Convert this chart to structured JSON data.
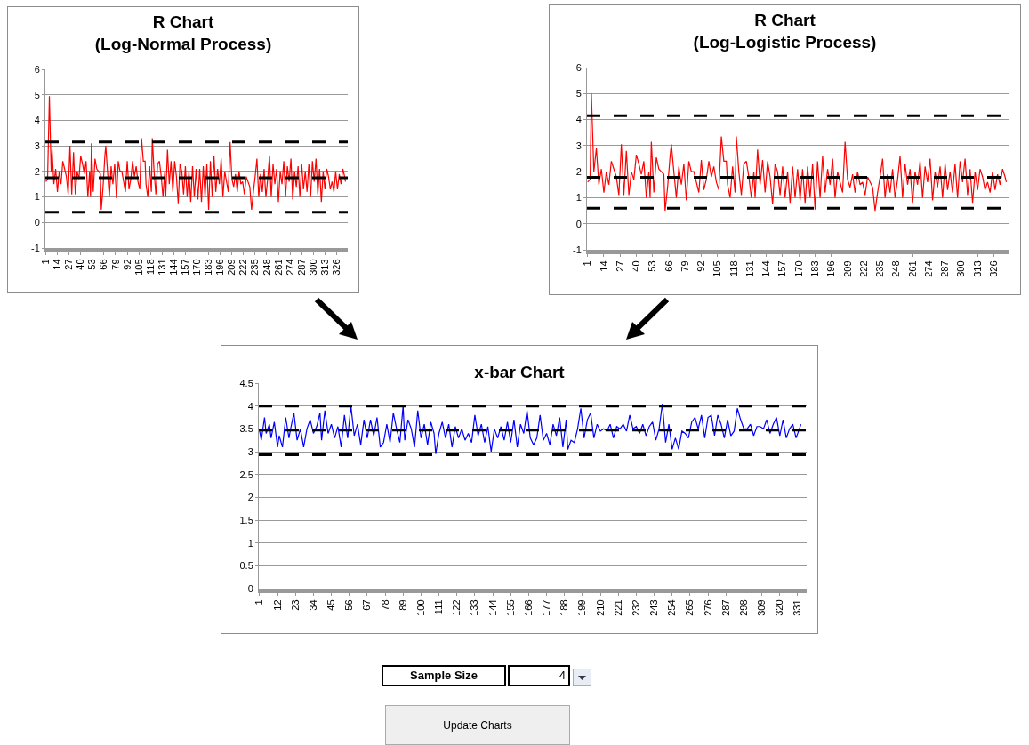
{
  "chart_data": [
    {
      "type": "line",
      "title": "R Chart\n(Log-Normal Process)",
      "marker": "none",
      "grid": "y",
      "xlim": [
        0.5,
        338.5
      ],
      "xticks": [
        1,
        14,
        27,
        40,
        53,
        66,
        79,
        92,
        105,
        118,
        131,
        144,
        157,
        170,
        183,
        196,
        209,
        222,
        235,
        248,
        261,
        274,
        287,
        300,
        313,
        326
      ],
      "ylim": [
        -1,
        6
      ],
      "yticks": [
        -1,
        0,
        1,
        2,
        3,
        4,
        5,
        6
      ],
      "ref_lines": [
        {
          "axis": "y",
          "value": 3.15,
          "color": "#000000",
          "line_style": "dashed"
        },
        {
          "axis": "y",
          "value": 1.75,
          "color": "#000000",
          "line_style": "dashed"
        },
        {
          "axis": "y",
          "value": 0.4,
          "color": "#000000",
          "line_style": "dashed"
        }
      ],
      "series": [
        {
          "color": "#ff0000",
          "x": [
            1,
            3,
            5,
            7,
            8,
            10,
            12,
            14,
            16,
            18,
            20,
            22,
            24,
            26,
            28,
            30,
            32,
            34,
            36,
            38,
            40,
            42,
            44,
            46,
            48,
            50,
            51,
            52,
            54,
            56,
            58,
            60,
            62,
            63,
            65,
            67,
            68,
            70,
            72,
            74,
            76,
            78,
            80,
            82,
            84,
            86,
            88,
            90,
            92,
            94,
            96,
            98,
            100,
            102,
            104,
            106,
            108,
            110,
            112,
            113,
            115,
            117,
            119,
            120,
            122,
            124,
            126,
            128,
            130,
            132,
            134,
            135,
            137,
            139,
            141,
            143,
            145,
            147,
            149,
            151,
            153,
            155,
            157,
            159,
            161,
            163,
            165,
            167,
            169,
            171,
            173,
            175,
            177,
            179,
            181,
            183,
            185,
            187,
            189,
            191,
            193,
            195,
            197,
            199,
            201,
            203,
            205,
            207,
            209,
            211,
            213,
            215,
            217,
            219,
            221,
            223,
            225,
            227,
            229,
            231,
            233,
            235,
            237,
            239,
            241,
            243,
            245,
            247,
            249,
            251,
            253,
            255,
            257,
            259,
            261,
            263,
            265,
            267,
            269,
            271,
            273,
            275,
            277,
            279,
            281,
            283,
            285,
            287,
            289,
            291,
            293,
            295,
            297,
            299,
            301,
            303,
            305,
            307,
            309,
            311,
            313,
            315,
            317,
            319,
            321,
            323,
            325,
            327,
            329,
            331,
            333,
            335,
            336
          ],
          "values": [
            1.6,
            1.7,
            4.95,
            2.0,
            2.85,
            1.5,
            2.1,
            1.2,
            2.0,
            1.5,
            2.4,
            2.1,
            1.8,
            1.1,
            3.0,
            1.1,
            2.75,
            1.1,
            2.0,
            1.7,
            2.6,
            2.3,
            1.9,
            2.4,
            1.0,
            2.0,
            1.0,
            3.1,
            1.2,
            2.5,
            2.1,
            2.0,
            1.9,
            0.5,
            1.4,
            2.6,
            3.0,
            2.0,
            1.0,
            2.2,
            1.5,
            2.3,
            0.95,
            2.4,
            2.0,
            2.0,
            1.6,
            1.2,
            2.4,
            1.3,
            1.7,
            2.4,
            1.8,
            2.2,
            1.6,
            1.3,
            3.3,
            2.4,
            2.4,
            1.5,
            1.0,
            2.2,
            1.2,
            3.3,
            2.0,
            1.1,
            2.3,
            2.4,
            1.8,
            1.0,
            2.0,
            1.0,
            2.85,
            1.5,
            2.4,
            1.2,
            2.4,
            1.8,
            0.75,
            2.3,
            2.0,
            1.1,
            2.2,
            1.0,
            2.0,
            0.8,
            2.2,
            1.0,
            2.1,
            0.9,
            2.1,
            0.8,
            2.2,
            1.0,
            2.3,
            0.5,
            2.4,
            1.0,
            2.6,
            1.2,
            2.1,
            1.5,
            2.5,
            1.0,
            2.0,
            1.6,
            1.2,
            3.15,
            1.7,
            1.4,
            1.9,
            1.2,
            2.0,
            1.5,
            1.6,
            1.1,
            1.8,
            1.6,
            1.4,
            0.5,
            1.2,
            1.8,
            2.5,
            1.0,
            1.9,
            1.2,
            2.1,
            1.0,
            1.7,
            2.6,
            1.0,
            2.3,
            1.5,
            2.1,
            0.8,
            2.0,
            1.5,
            2.4,
            1.0,
            2.2,
            1.6,
            2.5,
            0.9,
            2.0,
            1.4,
            2.2,
            1.0,
            2.3,
            1.3,
            2.0,
            1.2,
            2.3,
            1.0,
            2.4,
            1.6,
            2.5,
            1.1,
            2.1,
            0.8,
            2.0,
            1.3,
            2.1,
            1.8,
            1.3,
            1.6,
            1.2,
            2.0,
            1.3,
            1.9,
            1.5,
            2.1,
            1.8,
            1.6
          ]
        }
      ]
    },
    {
      "type": "line",
      "title": "R Chart\n(Log-Logistic Process)",
      "marker": "none",
      "grid": "y",
      "xlim": [
        0.5,
        338.5
      ],
      "xticks": [
        1,
        14,
        27,
        40,
        53,
        66,
        79,
        92,
        105,
        118,
        131,
        144,
        157,
        170,
        183,
        196,
        209,
        222,
        235,
        248,
        261,
        274,
        287,
        300,
        313,
        326
      ],
      "ylim": [
        -1,
        6
      ],
      "yticks": [
        -1,
        0,
        1,
        2,
        3,
        4,
        5,
        6
      ],
      "ref_lines": [
        {
          "axis": "y",
          "value": 4.15,
          "color": "#000000",
          "line_style": "dashed"
        },
        {
          "axis": "y",
          "value": 1.78,
          "color": "#000000",
          "line_style": "dashed"
        },
        {
          "axis": "y",
          "value": 0.6,
          "color": "#000000",
          "line_style": "dashed"
        }
      ],
      "series": [
        {
          "color": "#ff0000",
          "x": [
            1,
            3,
            4,
            6,
            8,
            10,
            12,
            14,
            16,
            18,
            20,
            22,
            24,
            26,
            28,
            30,
            32,
            34,
            36,
            38,
            40,
            42,
            44,
            46,
            48,
            50,
            51,
            52,
            54,
            56,
            58,
            60,
            62,
            63,
            65,
            67,
            68,
            70,
            72,
            74,
            76,
            78,
            80,
            82,
            84,
            86,
            88,
            90,
            92,
            94,
            96,
            98,
            100,
            102,
            104,
            106,
            108,
            110,
            112,
            113,
            115,
            117,
            119,
            120,
            122,
            124,
            126,
            128,
            130,
            132,
            134,
            135,
            137,
            139,
            141,
            143,
            145,
            147,
            149,
            151,
            153,
            155,
            157,
            159,
            161,
            163,
            165,
            167,
            169,
            171,
            173,
            175,
            177,
            179,
            181,
            183,
            185,
            187,
            189,
            191,
            193,
            195,
            197,
            199,
            201,
            203,
            205,
            207,
            209,
            211,
            213,
            215,
            217,
            219,
            221,
            223,
            225,
            227,
            229,
            231,
            233,
            235,
            237,
            239,
            241,
            243,
            245,
            247,
            249,
            251,
            253,
            255,
            257,
            259,
            261,
            263,
            265,
            267,
            269,
            271,
            273,
            275,
            277,
            279,
            281,
            283,
            285,
            287,
            289,
            291,
            293,
            295,
            297,
            299,
            301,
            303,
            305,
            307,
            309,
            311,
            313,
            315,
            317,
            319,
            321,
            323,
            325,
            327,
            329,
            331,
            333,
            335,
            336
          ],
          "values": [
            1.6,
            1.7,
            5.0,
            2.0,
            2.9,
            1.5,
            2.1,
            1.2,
            2.0,
            1.5,
            2.4,
            2.1,
            1.8,
            1.1,
            3.05,
            1.1,
            2.8,
            1.1,
            2.0,
            1.7,
            2.65,
            2.3,
            1.9,
            2.4,
            1.0,
            2.0,
            1.0,
            3.15,
            1.2,
            2.55,
            2.1,
            2.0,
            1.9,
            0.5,
            1.4,
            2.6,
            3.05,
            2.0,
            1.0,
            2.2,
            1.5,
            2.3,
            0.9,
            2.4,
            2.0,
            2.0,
            1.6,
            1.2,
            2.45,
            1.3,
            1.7,
            2.4,
            1.8,
            2.2,
            1.6,
            1.3,
            3.35,
            2.4,
            2.4,
            1.5,
            1.0,
            2.2,
            1.2,
            3.35,
            2.0,
            1.1,
            2.3,
            2.4,
            1.8,
            1.0,
            2.0,
            1.0,
            2.85,
            1.5,
            2.45,
            1.2,
            2.4,
            1.8,
            0.75,
            2.3,
            2.0,
            1.1,
            2.2,
            1.0,
            2.0,
            0.8,
            2.2,
            1.0,
            2.1,
            0.9,
            2.1,
            0.8,
            2.2,
            1.0,
            2.3,
            0.55,
            2.4,
            1.0,
            2.6,
            1.2,
            2.1,
            1.5,
            2.5,
            1.0,
            2.0,
            1.6,
            1.2,
            3.15,
            1.7,
            1.4,
            1.9,
            1.2,
            2.0,
            1.5,
            1.6,
            1.1,
            1.8,
            1.6,
            1.4,
            0.5,
            1.2,
            1.8,
            2.5,
            1.0,
            1.9,
            1.2,
            2.1,
            1.0,
            1.7,
            2.6,
            1.0,
            2.3,
            1.5,
            2.1,
            0.8,
            2.0,
            1.5,
            2.4,
            1.0,
            2.2,
            1.6,
            2.5,
            0.9,
            2.0,
            1.4,
            2.2,
            1.0,
            2.3,
            1.3,
            2.0,
            1.2,
            2.3,
            1.0,
            2.4,
            1.6,
            2.5,
            1.1,
            2.1,
            0.8,
            2.0,
            1.3,
            2.1,
            1.8,
            1.3,
            1.6,
            1.2,
            2.0,
            1.3,
            1.9,
            1.5,
            2.1,
            1.8,
            1.6
          ]
        }
      ]
    },
    {
      "type": "line",
      "title": "x-bar Chart",
      "marker": "none",
      "grid": "y",
      "xlim": [
        0.5,
        336.5
      ],
      "xticks": [
        1,
        12,
        23,
        34,
        45,
        56,
        67,
        78,
        89,
        100,
        111,
        122,
        133,
        144,
        155,
        166,
        177,
        188,
        199,
        210,
        221,
        232,
        243,
        254,
        265,
        276,
        287,
        298,
        309,
        320,
        331
      ],
      "ylim": [
        0,
        4.5
      ],
      "yticks": [
        0,
        0.5,
        1,
        1.5,
        2,
        2.5,
        3,
        3.5,
        4,
        4.5
      ],
      "ref_lines": [
        {
          "axis": "y",
          "value": 4.0,
          "color": "#000000",
          "line_style": "dashed"
        },
        {
          "axis": "y",
          "value": 3.47,
          "color": "#000000",
          "line_style": "dashed"
        },
        {
          "axis": "y",
          "value": 2.93,
          "color": "#000000",
          "line_style": "dashed"
        }
      ],
      "series": [
        {
          "color": "#0000ff",
          "x": [
            1,
            2,
            4,
            5,
            7,
            8,
            10,
            12,
            13,
            15,
            17,
            19,
            20,
            22,
            24,
            26,
            28,
            30,
            32,
            34,
            36,
            38,
            39,
            41,
            43,
            45,
            47,
            49,
            51,
            53,
            55,
            57,
            59,
            61,
            63,
            65,
            67,
            69,
            71,
            73,
            75,
            77,
            79,
            81,
            83,
            85,
            87,
            89,
            90,
            92,
            94,
            96,
            98,
            100,
            102,
            104,
            106,
            108,
            109,
            111,
            113,
            115,
            117,
            119,
            121,
            123,
            125,
            127,
            129,
            131,
            133,
            135,
            137,
            139,
            141,
            143,
            145,
            147,
            149,
            151,
            153,
            155,
            157,
            159,
            161,
            163,
            165,
            167,
            169,
            171,
            173,
            175,
            177,
            179,
            181,
            183,
            185,
            187,
            189,
            190,
            192,
            194,
            196,
            198,
            200,
            202,
            204,
            206,
            208,
            210,
            212,
            214,
            216,
            218,
            220,
            222,
            224,
            226,
            228,
            230,
            232,
            234,
            236,
            238,
            240,
            242,
            244,
            246,
            248,
            250,
            252,
            254,
            256,
            258,
            260,
            262,
            264,
            266,
            268,
            270,
            272,
            274,
            276,
            278,
            280,
            282,
            284,
            286,
            288,
            290,
            292,
            294,
            296,
            298,
            300,
            302,
            304,
            306,
            308,
            310,
            312,
            314,
            316,
            318,
            320,
            322,
            324,
            326,
            328,
            330,
            333
          ],
          "values": [
            3.45,
            3.25,
            3.75,
            3.4,
            3.6,
            3.3,
            3.65,
            3.1,
            3.35,
            3.1,
            3.75,
            3.3,
            3.5,
            3.85,
            3.25,
            3.5,
            3.1,
            3.5,
            3.7,
            3.4,
            3.55,
            3.85,
            3.25,
            3.9,
            3.4,
            3.6,
            3.3,
            3.55,
            3.1,
            3.8,
            3.3,
            4.0,
            3.35,
            3.6,
            3.15,
            3.7,
            3.3,
            3.7,
            3.35,
            3.75,
            3.1,
            3.2,
            3.6,
            3.2,
            3.85,
            3.5,
            3.2,
            4.0,
            3.25,
            3.7,
            3.5,
            3.1,
            3.9,
            3.3,
            3.6,
            3.15,
            3.65,
            3.4,
            2.95,
            3.4,
            3.65,
            3.3,
            3.6,
            3.1,
            3.55,
            3.3,
            3.5,
            3.25,
            3.4,
            3.2,
            3.8,
            3.35,
            3.6,
            3.2,
            3.55,
            3.0,
            3.5,
            3.3,
            3.55,
            3.25,
            3.65,
            3.2,
            3.7,
            3.1,
            3.6,
            3.4,
            3.9,
            3.3,
            3.15,
            3.3,
            3.8,
            3.25,
            3.4,
            3.15,
            3.6,
            3.35,
            3.75,
            3.1,
            3.7,
            3.05,
            3.25,
            3.2,
            3.5,
            3.95,
            3.3,
            3.7,
            3.85,
            3.3,
            3.6,
            3.45,
            3.5,
            3.45,
            3.6,
            3.3,
            3.55,
            3.5,
            3.6,
            3.45,
            3.8,
            3.5,
            3.55,
            3.4,
            3.6,
            3.35,
            3.55,
            3.65,
            3.25,
            3.5,
            4.05,
            3.2,
            3.6,
            3.05,
            3.3,
            3.05,
            3.45,
            3.4,
            3.3,
            3.65,
            3.75,
            3.5,
            3.8,
            3.3,
            3.75,
            3.8,
            3.35,
            3.8,
            3.6,
            3.3,
            3.7,
            3.35,
            3.45,
            3.95,
            3.7,
            3.5,
            3.5,
            3.6,
            3.35,
            3.55,
            3.55,
            3.5,
            3.7,
            3.4,
            3.6,
            3.75,
            3.35,
            3.7,
            3.3,
            3.5,
            3.6,
            3.3,
            3.6
          ]
        }
      ]
    },
    {
      "type": "other",
      "annotations": [
        "Sample Size",
        "4",
        "Update Charts"
      ]
    }
  ]
}
